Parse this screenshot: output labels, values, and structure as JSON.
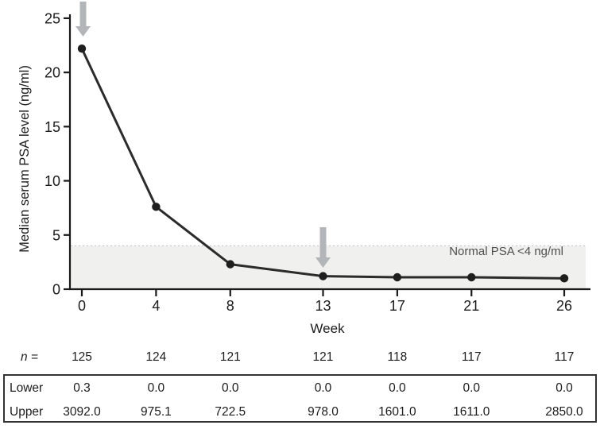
{
  "figure": {
    "y_axis_title": "Median serum PSA level (ng/ml)",
    "x_axis_title": "Week",
    "normal_band_label": "Normal PSA <4 ng/ml"
  },
  "chart_data": {
    "type": "line",
    "x": [
      0,
      4,
      8,
      13,
      17,
      21,
      26
    ],
    "xlabel": "Week",
    "ylabel": "Median serum PSA level (ng/ml)",
    "series": [
      {
        "name": "Median serum PSA level",
        "values": [
          22.2,
          7.6,
          2.3,
          1.2,
          1.1,
          1.1,
          1.0
        ]
      }
    ],
    "ylim": [
      0,
      25
    ],
    "yticks": [
      0,
      5,
      10,
      15,
      20,
      25
    ],
    "normal_band": {
      "lower": 0,
      "upper": 4,
      "label": "Normal PSA <4 ng/ml"
    },
    "annotations": [
      {
        "type": "arrow-down",
        "week": 0,
        "meaning": "dosing-arrow"
      },
      {
        "type": "arrow-down",
        "week": 13,
        "meaning": "dosing-arrow"
      }
    ],
    "grid": false,
    "legend": "none",
    "colors": {
      "line": "#2b2b2b",
      "point": "#1f1f1f",
      "band": "#f0f0ee",
      "band_border": "#c6c6c6",
      "arrow": "#b3b6b9",
      "axis": "#1a1a1a"
    }
  },
  "table": {
    "n_row": {
      "label": "n =",
      "values": [
        "125",
        "124",
        "121",
        "121",
        "118",
        "117",
        "117"
      ]
    },
    "rows": [
      {
        "label": "Lower",
        "values": [
          "0.3",
          "0.0",
          "0.0",
          "0.0",
          "0.0",
          "0.0",
          "0.0"
        ]
      },
      {
        "label": "Upper",
        "values": [
          "3092.0",
          "975.1",
          "722.5",
          "978.0",
          "1601.0",
          "1611.0",
          "2850.0"
        ]
      }
    ]
  }
}
